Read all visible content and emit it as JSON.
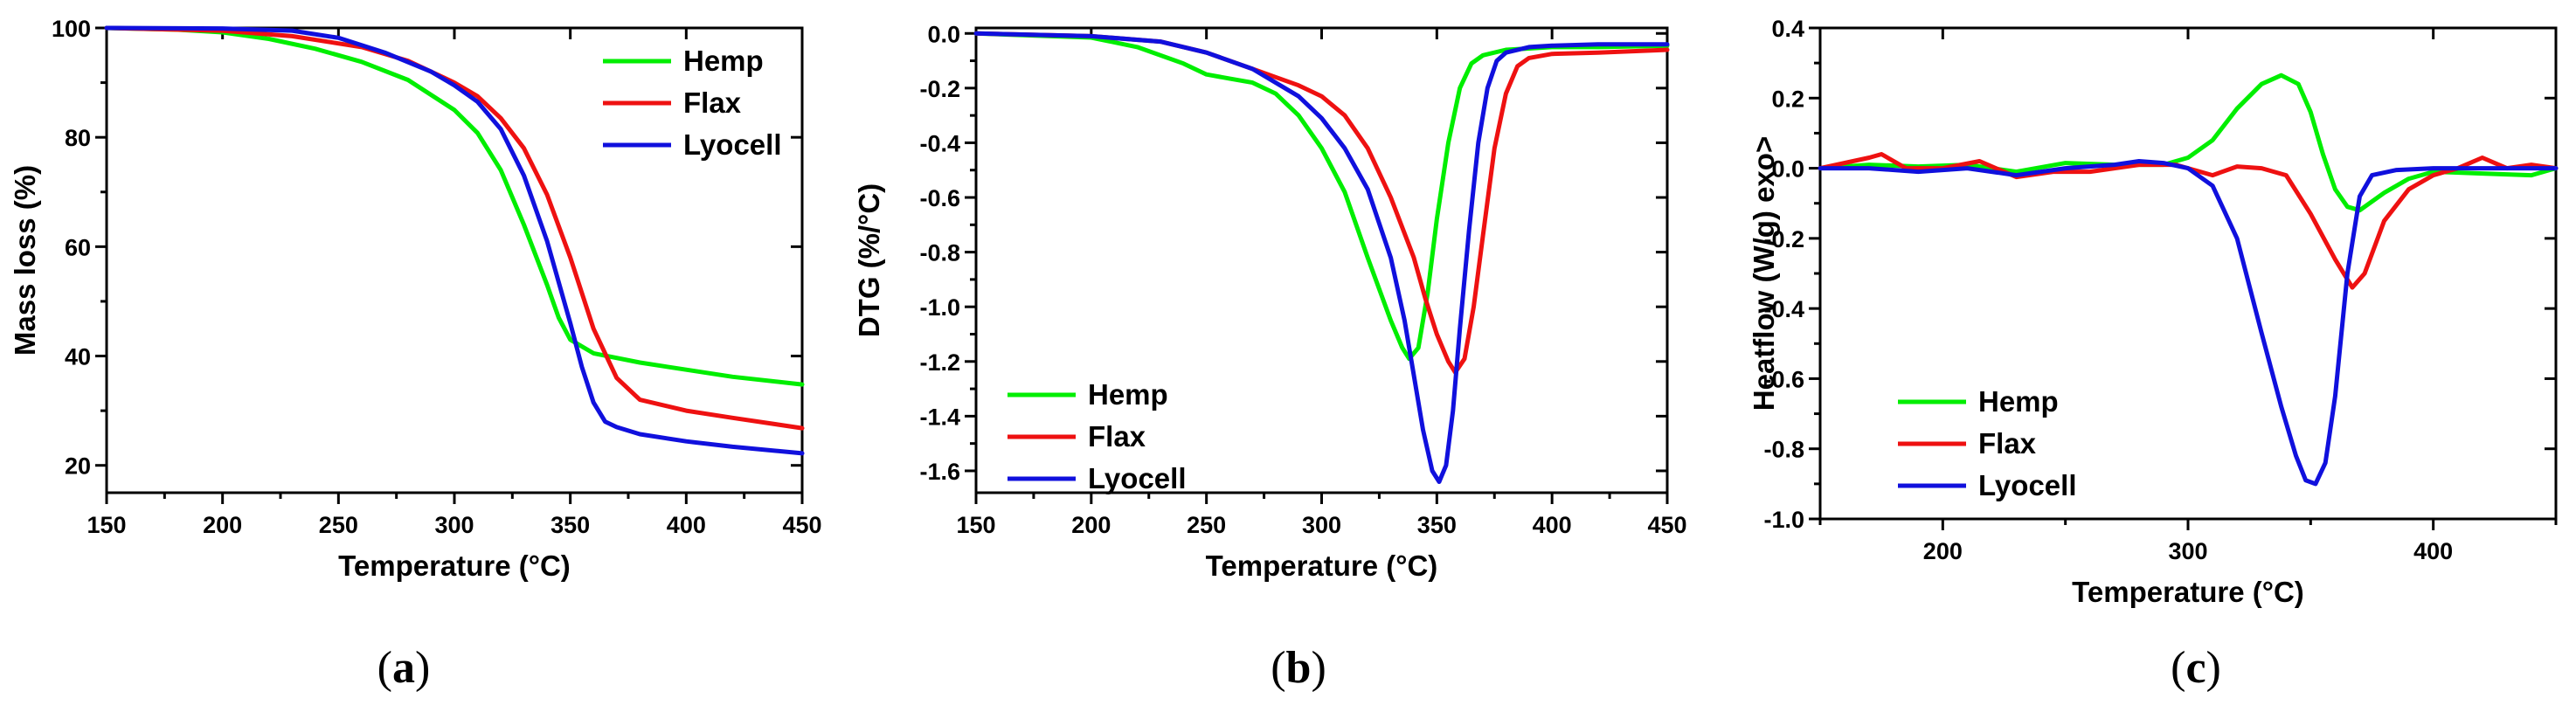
{
  "colors": {
    "hemp": "#00ee00",
    "flax": "#ee1111",
    "lyocell": "#1010dd"
  },
  "chart_data": [
    {
      "type": "line",
      "panel_label": "(a)",
      "panel_letter": "a",
      "xlabel": "Temperature (°C)",
      "ylabel": "Mass loss (%)",
      "xlim": [
        150,
        450
      ],
      "ylim": [
        15,
        100
      ],
      "xticks": [
        150,
        200,
        250,
        300,
        350,
        400,
        450
      ],
      "yticks": [
        20,
        40,
        60,
        80,
        100
      ],
      "xtick_labels": [
        "150",
        "200",
        "250",
        "300",
        "350",
        "400",
        "450"
      ],
      "ytick_labels": [
        "20",
        "40",
        "60",
        "80",
        "100"
      ],
      "legend_position": "top-right",
      "series": [
        {
          "name": "Hemp",
          "color": "#00ee00",
          "x": [
            150,
            180,
            200,
            220,
            240,
            260,
            280,
            300,
            310,
            320,
            330,
            340,
            345,
            350,
            360,
            380,
            400,
            420,
            450
          ],
          "y": [
            100,
            99.7,
            99.2,
            98,
            96.2,
            93.8,
            90.5,
            85,
            80.8,
            74,
            64,
            53,
            47,
            43,
            40.5,
            38.8,
            37.5,
            36.2,
            34.8
          ]
        },
        {
          "name": "Flax",
          "color": "#ee1111",
          "x": [
            150,
            200,
            230,
            260,
            280,
            300,
            310,
            320,
            330,
            340,
            350,
            360,
            370,
            380,
            400,
            420,
            450
          ],
          "y": [
            100,
            99.5,
            98.5,
            96.5,
            94,
            90,
            87.5,
            83.5,
            78,
            69.5,
            58,
            45,
            36,
            32,
            30,
            28.7,
            26.8
          ]
        },
        {
          "name": "Lyocell",
          "color": "#1010dd",
          "x": [
            150,
            200,
            230,
            250,
            270,
            290,
            300,
            310,
            320,
            330,
            340,
            350,
            355,
            360,
            365,
            370,
            380,
            400,
            420,
            450
          ],
          "y": [
            100,
            99.9,
            99.5,
            98.2,
            95.5,
            92,
            89.5,
            86.5,
            81.5,
            73,
            61,
            46,
            38,
            31.5,
            28,
            27,
            25.7,
            24.4,
            23.4,
            22.2
          ]
        }
      ]
    },
    {
      "type": "line",
      "panel_label": "(b)",
      "panel_letter": "b",
      "xlabel": "Temperature (°C)",
      "ylabel": "DTG (%/°C)",
      "xlim": [
        150,
        450
      ],
      "ylim": [
        -1.68,
        0.02
      ],
      "xticks": [
        150,
        200,
        250,
        300,
        350,
        400,
        450
      ],
      "yticks": [
        0.0,
        -0.2,
        -0.4,
        -0.6,
        -0.8,
        -1.0,
        -1.2,
        -1.4,
        -1.6
      ],
      "xtick_labels": [
        "150",
        "200",
        "250",
        "300",
        "350",
        "400",
        "450"
      ],
      "ytick_labels": [
        "0.0",
        "-0.2",
        "-0.4",
        "-0.6",
        "-0.8",
        "-1.0",
        "-1.2",
        "-1.4",
        "-1.6"
      ],
      "legend_position": "bottom-left",
      "series": [
        {
          "name": "Hemp",
          "color": "#00ee00",
          "x": [
            150,
            200,
            220,
            240,
            250,
            260,
            270,
            280,
            290,
            300,
            310,
            320,
            330,
            335,
            338,
            342,
            346,
            350,
            355,
            360,
            365,
            370,
            380,
            390,
            400,
            420,
            450
          ],
          "y": [
            0,
            -0.015,
            -0.05,
            -0.11,
            -0.15,
            -0.165,
            -0.18,
            -0.22,
            -0.3,
            -0.42,
            -0.58,
            -0.82,
            -1.05,
            -1.15,
            -1.19,
            -1.15,
            -0.95,
            -0.68,
            -0.4,
            -0.2,
            -0.11,
            -0.08,
            -0.06,
            -0.055,
            -0.05,
            -0.05,
            -0.045
          ]
        },
        {
          "name": "Flax",
          "color": "#ee1111",
          "x": [
            150,
            200,
            230,
            250,
            270,
            280,
            290,
            300,
            310,
            320,
            330,
            340,
            345,
            350,
            355,
            358,
            362,
            366,
            370,
            375,
            380,
            385,
            390,
            400,
            420,
            450
          ],
          "y": [
            0,
            -0.01,
            -0.03,
            -0.07,
            -0.13,
            -0.16,
            -0.19,
            -0.23,
            -0.3,
            -0.42,
            -0.6,
            -0.82,
            -0.97,
            -1.1,
            -1.2,
            -1.24,
            -1.19,
            -1.0,
            -0.74,
            -0.42,
            -0.22,
            -0.12,
            -0.09,
            -0.075,
            -0.07,
            -0.06
          ]
        },
        {
          "name": "Lyocell",
          "color": "#1010dd",
          "x": [
            150,
            200,
            230,
            250,
            270,
            290,
            300,
            310,
            320,
            330,
            336,
            340,
            344,
            348,
            351,
            354,
            357,
            360,
            364,
            368,
            372,
            376,
            380,
            390,
            400,
            420,
            450
          ],
          "y": [
            0,
            -0.01,
            -0.03,
            -0.07,
            -0.13,
            -0.23,
            -0.31,
            -0.42,
            -0.57,
            -0.82,
            -1.05,
            -1.25,
            -1.45,
            -1.6,
            -1.64,
            -1.58,
            -1.38,
            -1.08,
            -0.72,
            -0.4,
            -0.2,
            -0.1,
            -0.07,
            -0.05,
            -0.045,
            -0.04,
            -0.04
          ]
        }
      ]
    },
    {
      "type": "line",
      "panel_label": "(c)",
      "panel_letter": "c",
      "xlabel": "Temperature (°C)",
      "ylabel": "Heatflow (W/g) exo>",
      "xlim": [
        150,
        450
      ],
      "ylim": [
        -1.0,
        0.4
      ],
      "xticks": [
        200,
        300,
        400
      ],
      "yticks": [
        0.4,
        0.2,
        0.0,
        -0.2,
        -0.4,
        -0.6,
        -0.8,
        -1.0
      ],
      "xtick_labels": [
        "200",
        "300",
        "400"
      ],
      "ytick_labels": [
        "0.4",
        "0.2",
        "0.0",
        "-0.2",
        "-0.4",
        "-0.6",
        "-0.8",
        "-1.0"
      ],
      "legend_position": "bottom-left",
      "series": [
        {
          "name": "Hemp",
          "color": "#00ee00",
          "x": [
            150,
            170,
            190,
            210,
            230,
            250,
            270,
            290,
            300,
            310,
            320,
            330,
            338,
            345,
            350,
            355,
            360,
            365,
            370,
            380,
            390,
            400,
            420,
            440,
            450
          ],
          "y": [
            0,
            0.01,
            0.005,
            0.01,
            -0.01,
            0.015,
            0.01,
            0.01,
            0.03,
            0.08,
            0.17,
            0.24,
            0.265,
            0.24,
            0.16,
            0.04,
            -0.06,
            -0.11,
            -0.12,
            -0.07,
            -0.03,
            -0.01,
            -0.015,
            -0.02,
            0
          ]
        },
        {
          "name": "Flax",
          "color": "#ee1111",
          "x": [
            150,
            170,
            175,
            185,
            200,
            215,
            230,
            245,
            260,
            280,
            295,
            310,
            320,
            330,
            340,
            350,
            360,
            367,
            372,
            380,
            390,
            400,
            410,
            420,
            430,
            440,
            450
          ],
          "y": [
            0,
            0.03,
            0.04,
            0.0,
            0.0,
            0.02,
            -0.025,
            -0.01,
            -0.01,
            0.01,
            0.01,
            -0.02,
            0.005,
            0.0,
            -0.02,
            -0.13,
            -0.26,
            -0.34,
            -0.3,
            -0.15,
            -0.06,
            -0.02,
            0.0,
            0.03,
            0.0,
            0.01,
            0
          ]
        },
        {
          "name": "Lyocell",
          "color": "#1010dd",
          "x": [
            150,
            170,
            190,
            210,
            230,
            250,
            270,
            280,
            290,
            300,
            310,
            320,
            330,
            338,
            344,
            348,
            352,
            356,
            360,
            365,
            370,
            375,
            385,
            400,
            420,
            450
          ],
          "y": [
            0,
            0.0,
            -0.01,
            0.0,
            -0.02,
            0.0,
            0.01,
            0.02,
            0.015,
            0.0,
            -0.05,
            -0.2,
            -0.47,
            -0.68,
            -0.82,
            -0.89,
            -0.9,
            -0.84,
            -0.65,
            -0.3,
            -0.08,
            -0.02,
            -0.005,
            0.0,
            0.0,
            0
          ]
        }
      ]
    }
  ]
}
